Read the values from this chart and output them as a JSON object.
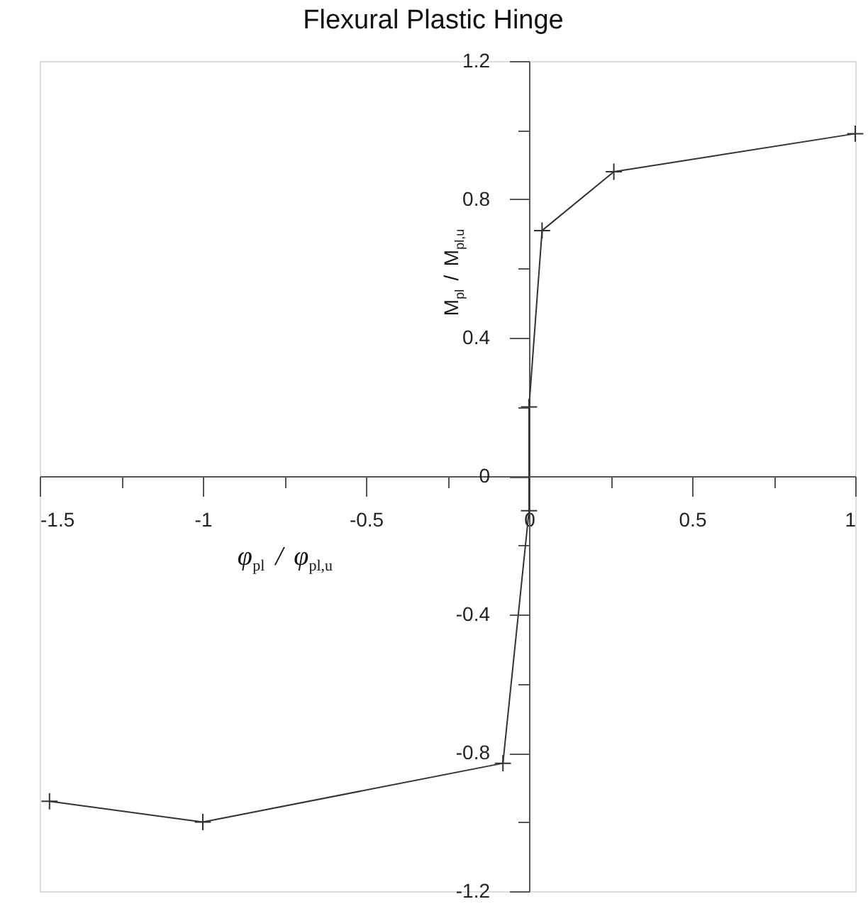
{
  "chart_data": {
    "type": "line",
    "title": "Flexural Plastic Hinge",
    "xlabel": "φ$_{pl}$ / φ$_{pl,u}$",
    "ylabel": "M$_{pl}$ / M$_{pl,u}$",
    "x": [
      -1.47,
      -1,
      -0.08,
      0,
      0,
      0.04,
      0.26,
      1
    ],
    "series": [
      {
        "color": "#333333",
        "values": [
          -0.94,
          -1,
          -0.83,
          -0.1,
          0.2,
          0.71,
          0.88,
          0.99
        ]
      }
    ],
    "xlim": [
      -1.5,
      1
    ],
    "ylim": [
      -1.2,
      1.2
    ],
    "xticks": [
      -1.5,
      {
        "value": -1.25,
        "label": null
      },
      -1,
      {
        "value": -0.75,
        "label": null
      },
      -0.5,
      {
        "value": -0.25,
        "label": null
      },
      0,
      {
        "value": 0.25,
        "label": null
      },
      0.5,
      {
        "value": 0.75,
        "label": null
      },
      1
    ],
    "yticks": [
      -1.2,
      {
        "value": -1,
        "label": null
      },
      -0.8,
      {
        "value": -0.6,
        "label": null
      },
      -0.4,
      {
        "value": -0.2,
        "label": null
      },
      0,
      {
        "value": 0.2,
        "label": null
      },
      0.4,
      {
        "value": 0.6,
        "label": null
      },
      0.8,
      {
        "value": 1,
        "label": null
      },
      1.2
    ],
    "marker": "cross",
    "line_style": "solid"
  }
}
